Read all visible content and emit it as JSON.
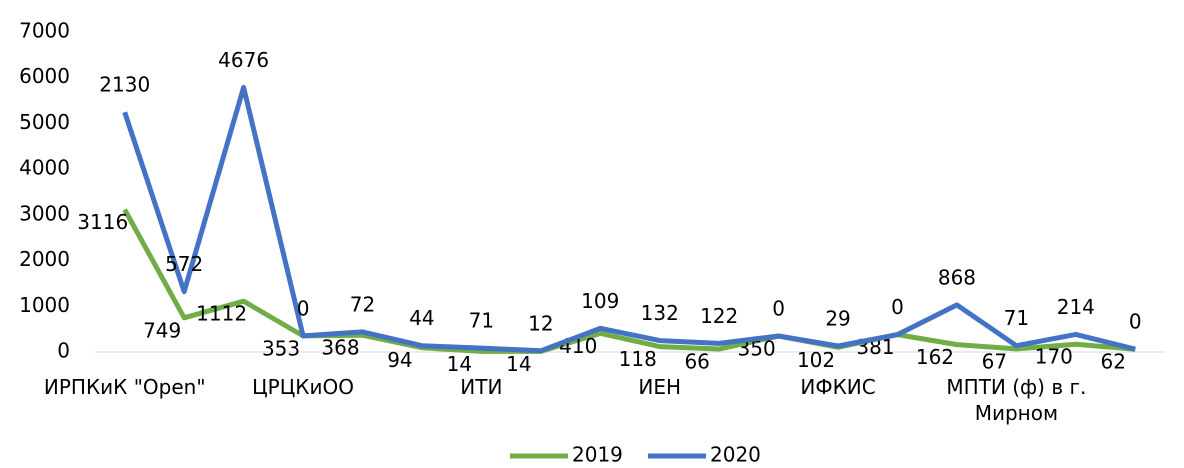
{
  "chart_data": {
    "type": "line",
    "stacked": true,
    "categories": [
      "ИРПКиК \"Open\"",
      null,
      null,
      "ЦРЦКиОО",
      null,
      null,
      "ИТИ",
      null,
      null,
      "ИЕН",
      null,
      null,
      "ИФКИС",
      null,
      null,
      "МПТИ (ф) в г. Мирном",
      null,
      null
    ],
    "series": [
      {
        "name": "2019",
        "color": "#70ad47",
        "values": [
          3116,
          749,
          1112,
          353,
          368,
          94,
          14,
          14,
          410,
          118,
          66,
          350,
          102,
          381,
          162,
          67,
          170,
          62
        ]
      },
      {
        "name": "2020",
        "color": "#4472c4",
        "values": [
          2130,
          572,
          4676,
          0,
          72,
          44,
          71,
          12,
          109,
          132,
          122,
          0,
          29,
          0,
          868,
          71,
          214,
          0
        ]
      }
    ],
    "ylim": [
      0,
      7000
    ],
    "yticks": [
      0,
      1000,
      2000,
      3000,
      4000,
      5000,
      6000,
      7000
    ],
    "grid": false,
    "legend": "bottom"
  }
}
